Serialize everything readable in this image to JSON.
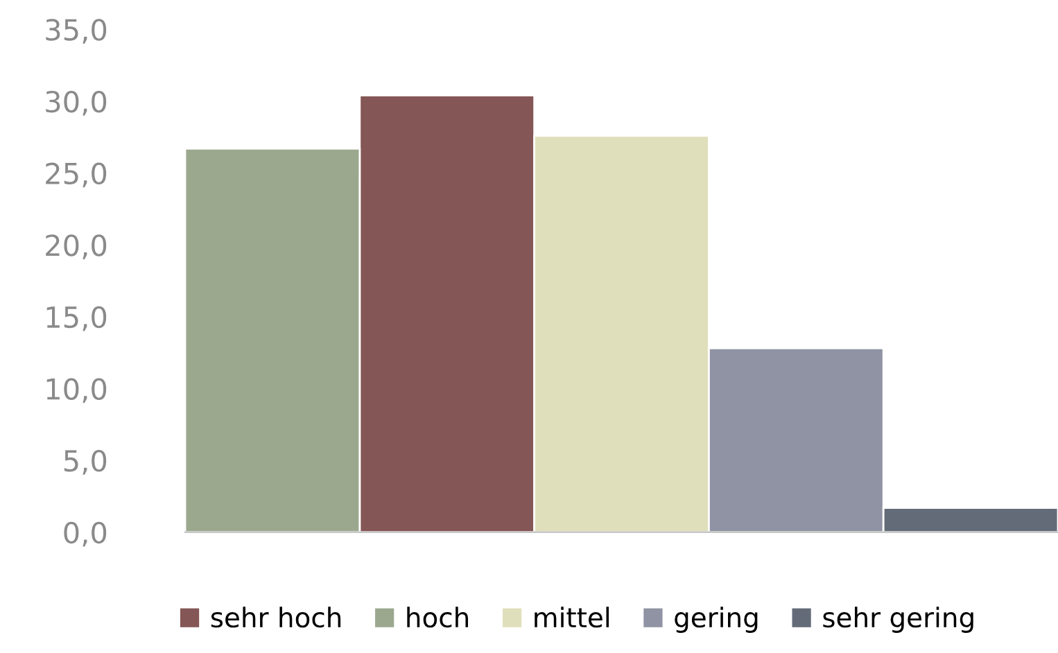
{
  "chart_data": {
    "type": "bar",
    "categories": [
      null,
      null,
      null,
      null,
      null
    ],
    "series": [
      {
        "name": "sehr hoch",
        "color": "#845655",
        "values": [
          null,
          30.4,
          null,
          null,
          null
        ]
      },
      {
        "name": "hoch",
        "color": "#9ca88e",
        "values": [
          26.7,
          null,
          null,
          null,
          null
        ]
      },
      {
        "name": "mittel",
        "color": "#e0dfbb",
        "values": [
          null,
          null,
          27.6,
          null,
          null
        ]
      },
      {
        "name": "gering",
        "color": "#8f93a3",
        "values": [
          null,
          null,
          null,
          12.8,
          null
        ]
      },
      {
        "name": "sehr gering",
        "color": "#646b78",
        "values": [
          null,
          null,
          null,
          null,
          1.7
        ]
      }
    ],
    "ylim": [
      0,
      35
    ],
    "yticks": [
      {
        "value": 0,
        "label": "0,0"
      },
      {
        "value": 5,
        "label": "5,0"
      },
      {
        "value": 10,
        "label": "10,0"
      },
      {
        "value": 15,
        "label": "15,0"
      },
      {
        "value": 20,
        "label": "20,0"
      },
      {
        "value": 25,
        "label": "25,0"
      },
      {
        "value": 30,
        "label": "30,0"
      },
      {
        "value": 35,
        "label": "35,0"
      }
    ],
    "grid": false,
    "legend": "bottom"
  }
}
